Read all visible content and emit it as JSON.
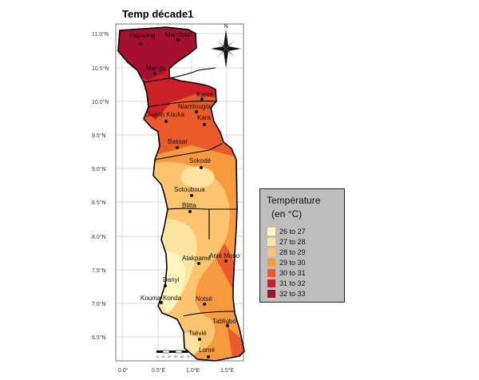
{
  "title": "Temp décade1",
  "legend": {
    "title": "Température",
    "subtitle": "(en °C)",
    "classes": [
      {
        "label": "26 to 27",
        "color": "#fdf6bf"
      },
      {
        "label": "27 to 28",
        "color": "#fde3a0"
      },
      {
        "label": "28 to 29",
        "color": "#fcc46e"
      },
      {
        "label": "29 to 30",
        "color": "#f79a3f"
      },
      {
        "label": "30 to 31",
        "color": "#ea5a2a"
      },
      {
        "label": "31 to 32",
        "color": "#cc2026"
      },
      {
        "label": "32 to 33",
        "color": "#a60f2e"
      }
    ]
  },
  "lat_ticks": [
    "11.0°N",
    "10.5°N",
    "10.0°N",
    "9.5°N",
    "9.0°N",
    "8.5°N",
    "8.0°N",
    "7.5°N",
    "7.0°N",
    "6.5°N"
  ],
  "lon_ticks": [
    "0.0°",
    "0.5°E",
    "1.0°E",
    "1.5°E"
  ],
  "north_label": "N",
  "scalebar_labels": [
    "0",
    "10",
    "20",
    "30",
    "40",
    "50"
  ],
  "stations": [
    {
      "name": "Dapaong"
    },
    {
      "name": "Mandouri"
    },
    {
      "name": "Mango"
    },
    {
      "name": "Kante"
    },
    {
      "name": "Niamtougou"
    },
    {
      "name": "Guérin Kouka"
    },
    {
      "name": "Kara"
    },
    {
      "name": "Bassar"
    },
    {
      "name": "Sokodé"
    },
    {
      "name": "Sotouboua"
    },
    {
      "name": "Blitta"
    },
    {
      "name": "Anié Mono"
    },
    {
      "name": "Atakpamé"
    },
    {
      "name": "Danyi"
    },
    {
      "name": "Kouma-Konda"
    },
    {
      "name": "Notsé"
    },
    {
      "name": "Tabligbo"
    },
    {
      "name": "Tsévié"
    },
    {
      "name": "Lomé"
    }
  ]
}
